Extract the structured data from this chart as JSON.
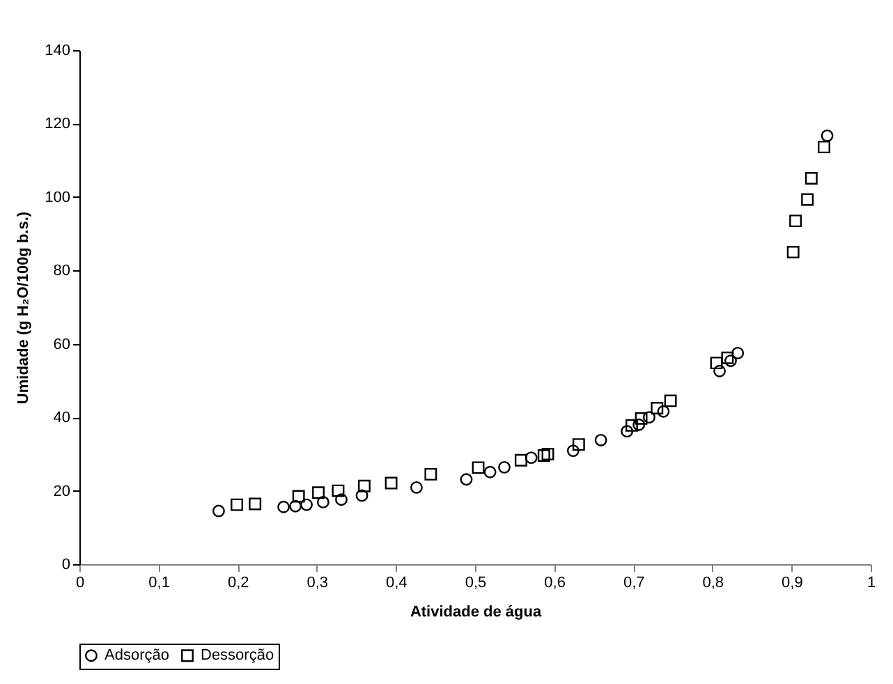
{
  "chart_data": {
    "type": "scatter",
    "xlabel": "Atividade de água",
    "ylabel": "Umidade (g H₂O/100g b.s.)",
    "xlim": [
      0,
      1
    ],
    "ylim": [
      0,
      140
    ],
    "xticks": [
      0,
      {
        "value": 0.1,
        "label": "0,1"
      },
      {
        "value": 0.2,
        "label": "0,2"
      },
      {
        "value": 0.3,
        "label": "0,3"
      },
      {
        "value": 0.4,
        "label": "0,4"
      },
      {
        "value": 0.5,
        "label": "0,5"
      },
      {
        "value": 0.6,
        "label": "0,6"
      },
      {
        "value": 0.7,
        "label": "0,7"
      },
      {
        "value": 0.8,
        "label": "0,8"
      },
      {
        "value": 0.9,
        "label": "0,9"
      },
      1
    ],
    "yticks": [
      0,
      20,
      40,
      60,
      80,
      100,
      120,
      140
    ],
    "grid": false,
    "legend": "bottom",
    "series": [
      {
        "name": "Adsorção",
        "color": "#000000",
        "marker": "circle",
        "x": [
          0.176,
          0.258,
          0.273,
          0.287,
          0.308,
          0.331,
          0.357,
          0.426,
          0.489,
          0.519,
          0.537,
          0.571,
          0.624,
          0.659,
          0.692,
          0.707,
          0.72,
          0.738,
          0.809,
          0.823,
          0.832,
          0.945
        ],
        "values": [
          14.5,
          15.6,
          15.8,
          16.2,
          16.9,
          17.6,
          18.7,
          20.9,
          23.1,
          25.1,
          26.4,
          29.0,
          30.9,
          33.8,
          36.2,
          38.0,
          40.0,
          41.6,
          52.6,
          55.4,
          57.5,
          116.7
        ]
      },
      {
        "name": "Dessorção",
        "color": "#000000",
        "marker": "square",
        "x": [
          0.199,
          0.222,
          0.277,
          0.302,
          0.327,
          0.36,
          0.394,
          0.444,
          0.504,
          0.558,
          0.587,
          0.592,
          0.631,
          0.698,
          0.71,
          0.73,
          0.747,
          0.805,
          0.819,
          0.902,
          0.905,
          0.92,
          0.925,
          0.941
        ],
        "values": [
          16.2,
          16.4,
          18.5,
          19.5,
          20.0,
          21.3,
          22.1,
          24.5,
          26.3,
          28.3,
          29.6,
          30.0,
          32.6,
          37.8,
          39.7,
          42.5,
          44.5,
          54.8,
          56.2,
          85.0,
          93.5,
          99.3,
          105.1,
          113.6
        ]
      }
    ]
  }
}
